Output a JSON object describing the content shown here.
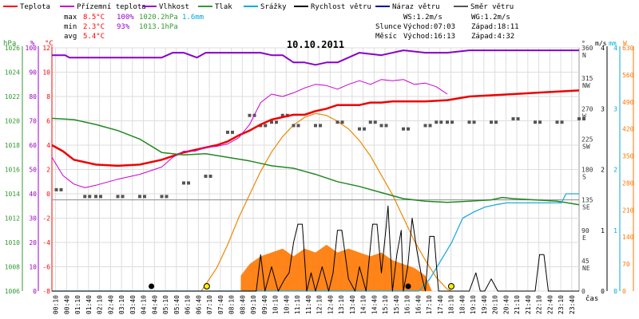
{
  "chart_data": {
    "type": "line",
    "title": "10.10.2011",
    "legend": [
      {
        "name": "Teplota",
        "color": "#ff0000"
      },
      {
        "name": "Přízemní teplota",
        "color": "#cc00cc"
      },
      {
        "name": "Vlhkost",
        "color": "#9900cc"
      },
      {
        "name": "Tlak",
        "color": "#339933"
      },
      {
        "name": "Srážky",
        "color": "#00aadd"
      },
      {
        "name": "Rychlost větru",
        "color": "#000000"
      },
      {
        "name": "Náraz větru",
        "color": "#000099"
      },
      {
        "name": "Směr větru",
        "color": "#555555"
      }
    ],
    "stats": {
      "max_label": "max",
      "max_temp": "8.5°C",
      "max_hum": "100%",
      "max_press": "1020.2hPa",
      "max_rain": "1.6mm",
      "min_label": "min",
      "min_temp": "2.3°C",
      "min_hum": "93%",
      "min_press": "1013.1hPa",
      "avg_label": "avg",
      "avg_temp": "5.4°C"
    },
    "wind_info": {
      "ws": "WS:1.2m/s",
      "wg": "WG:1.2m/s"
    },
    "sun_info": {
      "label": "Slunce",
      "rise": "Východ:07:03",
      "set": "Západ:18:11"
    },
    "moon_info": {
      "label": "Měsíc",
      "rise": "Východ:16:13",
      "set": "Západ:4:32"
    },
    "axes": {
      "hpa_label": "hPa",
      "hpa_ticks": [
        "1026",
        "1024",
        "1022",
        "1020",
        "1018",
        "1016",
        "1014",
        "1012",
        "1010",
        "1008",
        "1006"
      ],
      "pct_label": "%",
      "pct_ticks": [
        "100",
        "90",
        "80",
        "70",
        "60",
        "50",
        "40",
        "30",
        "20",
        "10",
        "0"
      ],
      "temp_label": "°C",
      "temp_ticks": [
        "12",
        "10",
        "8",
        "6",
        "4",
        "2",
        "0",
        "-2",
        "-4",
        "-6",
        "-8"
      ],
      "deg_label": "°",
      "dir_ticks": [
        {
          "v": "360",
          "d": "N"
        },
        {
          "v": "315",
          "d": "NW"
        },
        {
          "v": "270",
          "d": "W"
        },
        {
          "v": "225",
          "d": "SW"
        },
        {
          "v": "180",
          "d": "S"
        },
        {
          "v": "135",
          "d": "SE"
        },
        {
          "v": "90",
          "d": "E"
        },
        {
          "v": "45",
          "d": "NE"
        },
        {
          "v": "0",
          "d": ""
        }
      ],
      "ms_label": "m/s",
      "ms_ticks": [
        "4",
        "3",
        "2",
        "1",
        "0"
      ],
      "mm_label": "mm",
      "mm_ticks": [
        "4",
        "3",
        "2",
        "1",
        "0"
      ],
      "w_label": "W",
      "w_ticks": [
        "630",
        "560",
        "490",
        "420",
        "350",
        "280",
        "210",
        "140",
        "70",
        "0"
      ],
      "time_label": "čas",
      "x_ticks": [
        "00:10",
        "00:40",
        "01:10",
        "01:40",
        "02:10",
        "02:40",
        "03:10",
        "03:40",
        "04:10",
        "04:40",
        "05:10",
        "05:40",
        "06:10",
        "06:40",
        "07:10",
        "07:40",
        "08:10",
        "08:40",
        "09:10",
        "09:40",
        "10:10",
        "10:40",
        "11:10",
        "11:40",
        "12:10",
        "12:40",
        "13:10",
        "13:40",
        "14:10",
        "14:40",
        "15:10",
        "15:40",
        "16:10",
        "16:40",
        "17:10",
        "17:40",
        "18:10",
        "18:40",
        "19:10",
        "19:40",
        "20:10",
        "20:40",
        "21:10",
        "21:40",
        "22:10",
        "22:40",
        "23:10",
        "23:40"
      ]
    },
    "ylim_temp": [
      -8,
      12
    ],
    "ylim_humidity": [
      0,
      100
    ],
    "ylim_pressure": [
      1006,
      1026
    ],
    "ylim_direction": [
      0,
      360
    ],
    "ylim_wind": [
      0,
      4
    ],
    "ylim_rain": [
      0,
      4
    ],
    "ylim_solar": [
      0,
      630
    ],
    "xlim_hours": [
      0,
      24
    ],
    "series": [
      {
        "name": "Teplota",
        "color": "#ee0000",
        "t": [
          0,
          0.5,
          1,
          2,
          3,
          4,
          5,
          6,
          7,
          7.5,
          8,
          8.5,
          9,
          9.5,
          10,
          10.5,
          11,
          11.5,
          12,
          12.5,
          13,
          13.5,
          14,
          14.5,
          15,
          15.5,
          16,
          16.5,
          17,
          18,
          19,
          20,
          21,
          22,
          23,
          24
        ],
        "v": [
          4,
          3.5,
          2.8,
          2.4,
          2.3,
          2.4,
          2.8,
          3.4,
          3.8,
          4.0,
          4.3,
          4.8,
          5.2,
          5.7,
          6.1,
          6.3,
          6.5,
          6.5,
          6.8,
          7.0,
          7.3,
          7.3,
          7.3,
          7.5,
          7.5,
          7.6,
          7.6,
          7.6,
          7.6,
          7.7,
          8.0,
          8.1,
          8.2,
          8.3,
          8.4,
          8.5
        ]
      },
      {
        "name": "Přízemní teplota",
        "color": "#cc00cc",
        "t": [
          0,
          0.5,
          1,
          1.5,
          2,
          3,
          4,
          5,
          5.5,
          6,
          6.5,
          7,
          7.5,
          8,
          8.5,
          9,
          9.5,
          10,
          10.5,
          11,
          11.5,
          12,
          12.5,
          13,
          13.5,
          14,
          14.5,
          15,
          15.5,
          16,
          16.5,
          17,
          17.5,
          18
        ],
        "v": [
          3,
          1.5,
          0.8,
          0.5,
          0.7,
          1.2,
          1.6,
          2.2,
          3.0,
          3.5,
          3.5,
          3.8,
          3.9,
          4.1,
          4.6,
          5.7,
          7.5,
          8.2,
          8.0,
          8.3,
          8.7,
          9.0,
          8.9,
          8.6,
          9.0,
          9.3,
          9.0,
          9.4,
          9.3,
          9.4,
          9.0,
          9.1,
          8.8,
          8.2
        ]
      },
      {
        "name": "Vlhkost",
        "color": "#8800cc",
        "t": [
          0,
          0.6,
          0.8,
          1,
          5,
          5.5,
          6,
          6.6,
          7,
          8,
          9,
          9.5,
          10,
          10.5,
          11,
          11.5,
          12,
          12.5,
          13,
          14,
          15,
          16,
          17,
          18,
          19,
          20,
          21,
          22,
          23,
          24
        ],
        "v": [
          97,
          97,
          96,
          96,
          96,
          98,
          98,
          96,
          98,
          98,
          98,
          98,
          97,
          97,
          94,
          94,
          93,
          94,
          94,
          98,
          97,
          99,
          98,
          98,
          99,
          99,
          99,
          99,
          99,
          99
        ]
      },
      {
        "name": "Tlak",
        "color": "#228822",
        "t": [
          0,
          1,
          2,
          3,
          4,
          5,
          6,
          7,
          8,
          9,
          10,
          11,
          12,
          13,
          14,
          15,
          16,
          17,
          18,
          19,
          20,
          20.5,
          21,
          22,
          23,
          24
        ],
        "v": [
          1020.2,
          1020.1,
          1019.7,
          1019.2,
          1018.5,
          1017.4,
          1017.2,
          1017.3,
          1017.0,
          1016.7,
          1016.3,
          1016.1,
          1015.6,
          1015.0,
          1014.6,
          1014.1,
          1013.6,
          1013.4,
          1013.3,
          1013.4,
          1013.5,
          1013.7,
          1013.6,
          1013.5,
          1013.4,
          1013.1
        ]
      },
      {
        "name": "Srážky",
        "color": "#22aadd",
        "t": [
          0,
          16.7,
          17.2,
          17.7,
          18.2,
          18.7,
          19.2,
          19.7,
          20.2,
          20.7,
          21.2,
          22.2,
          23.2,
          23.4,
          24
        ],
        "v": [
          0,
          0,
          0.2,
          0.5,
          0.8,
          1.2,
          1.3,
          1.38,
          1.42,
          1.45,
          1.45,
          1.45,
          1.45,
          1.6,
          1.6
        ]
      },
      {
        "name": "Rychlost větru",
        "color": "#000000",
        "t": [
          0,
          4.4,
          9.3,
          9.5,
          9.7,
          10,
          10.3,
          10.6,
          10.8,
          11,
          11.2,
          11.4,
          11.6,
          11.8,
          12,
          12.3,
          12.6,
          12.8,
          13,
          13.2,
          13.5,
          13.8,
          14,
          14.3,
          14.6,
          14.8,
          15,
          15.2,
          15.3,
          15.5,
          15.7,
          15.9,
          16,
          16.2,
          16.4,
          16.6,
          16.8,
          17,
          17.2,
          17.4,
          17.6,
          17.8,
          18,
          19,
          19.3,
          19.5,
          19.7,
          20,
          20.3,
          20.5,
          20.7,
          21,
          21.5,
          22,
          22.2,
          22.4,
          22.6,
          23,
          23.5,
          24
        ],
        "v": [
          0,
          0,
          0,
          0.6,
          0,
          0.4,
          0,
          0.2,
          0.3,
          0.8,
          1.1,
          1.1,
          0,
          0.3,
          0,
          0.4,
          0,
          0.3,
          1.0,
          1.0,
          0.2,
          0,
          0.4,
          0,
          1.1,
          1.1,
          0.3,
          1.0,
          1.4,
          0,
          0.6,
          1.0,
          0,
          0.4,
          1.2,
          0.7,
          0.3,
          0,
          0.9,
          0.9,
          0,
          0,
          0,
          0,
          0.3,
          0,
          0,
          0.2,
          0,
          0,
          0,
          0,
          0,
          0,
          0.6,
          0.6,
          0,
          0,
          0,
          0
        ]
      },
      {
        "name": "Náraz větru",
        "color": "#000099",
        "t": [],
        "v": []
      },
      {
        "name": "Směr větru",
        "color": "#555555",
        "t": [
          0.2,
          1.5,
          2,
          3,
          4,
          5,
          6,
          7,
          8,
          9,
          9.5,
          10,
          10.5,
          11,
          12,
          13,
          14,
          14.5,
          15,
          16,
          17,
          17.5,
          18,
          19,
          20,
          21,
          22,
          23,
          24
        ],
        "v": [
          150,
          140,
          140,
          140,
          140,
          140,
          160,
          170,
          235,
          260,
          245,
          250,
          260,
          245,
          245,
          250,
          240,
          250,
          245,
          240,
          245,
          250,
          250,
          250,
          250,
          255,
          250,
          250,
          255
        ]
      }
    ],
    "solar": {
      "name": "Sluneční záření",
      "color": "#ff7700",
      "t": [
        6.8,
        7.5,
        8,
        8.5,
        9,
        9.5,
        10,
        10.5,
        11,
        11.5,
        12,
        12.5,
        13,
        13.5,
        14,
        14.5,
        15,
        15.5,
        16,
        16.5,
        17,
        17.5,
        18,
        18.2
      ],
      "v": [
        0,
        60,
        120,
        190,
        250,
        310,
        360,
        400,
        430,
        450,
        460,
        455,
        440,
        420,
        390,
        350,
        300,
        250,
        190,
        130,
        80,
        35,
        5,
        0
      ],
      "measured_t": [
        8.6,
        9,
        9.5,
        10,
        10.5,
        11,
        11.5,
        12,
        12.5,
        13,
        13.5,
        14,
        14.5,
        15,
        15.5,
        16,
        16.5,
        17,
        17.3
      ],
      "measured_v": [
        40,
        70,
        90,
        100,
        110,
        90,
        110,
        100,
        120,
        100,
        110,
        100,
        90,
        100,
        80,
        70,
        60,
        40,
        0
      ]
    },
    "markers": {
      "moon_set_hours": 4.53,
      "sunrise_hours": 7.05,
      "moon_rise_hours": 16.22,
      "sunset_hours": 18.18
    }
  }
}
